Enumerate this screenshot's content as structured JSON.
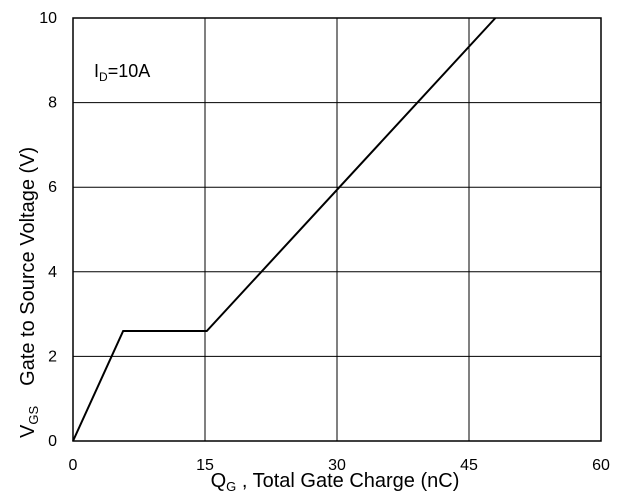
{
  "chart_data": {
    "type": "line",
    "xlabel": {
      "main": "Q",
      "sub": "G",
      "rest": " , Total Gate Charge (nC)"
    },
    "ylabel": {
      "main": "V",
      "sub": "GS",
      "rest": "Gate to Source Voltage (V)"
    },
    "annotation": {
      "main": "I",
      "sub": "D",
      "rest": "=10A"
    },
    "xlim": [
      0,
      60
    ],
    "ylim": [
      0,
      10
    ],
    "x_ticks": [
      0,
      15,
      30,
      45,
      60
    ],
    "y_ticks": [
      0,
      2,
      4,
      6,
      8,
      10
    ],
    "grid": true,
    "series": [
      {
        "x": [
          0,
          5.7,
          15.2,
          48
        ],
        "y": [
          0,
          2.6,
          2.6,
          10
        ]
      }
    ]
  }
}
